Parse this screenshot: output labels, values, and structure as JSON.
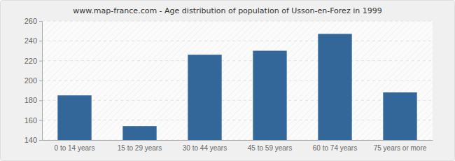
{
  "chart_data": {
    "type": "bar",
    "title": "www.map-france.com - Age distribution of population of Usson-en-Forez in 1999",
    "categories": [
      "0 to 14 years",
      "15 to 29 years",
      "30 to 44 years",
      "45 to 59 years",
      "60 to 74 years",
      "75 years or more"
    ],
    "values": [
      185,
      154,
      226,
      230,
      247,
      188
    ],
    "color": "#336699",
    "ylim": [
      140,
      260
    ],
    "yticks": [
      140,
      160,
      180,
      200,
      220,
      240,
      260
    ],
    "grid": true
  }
}
